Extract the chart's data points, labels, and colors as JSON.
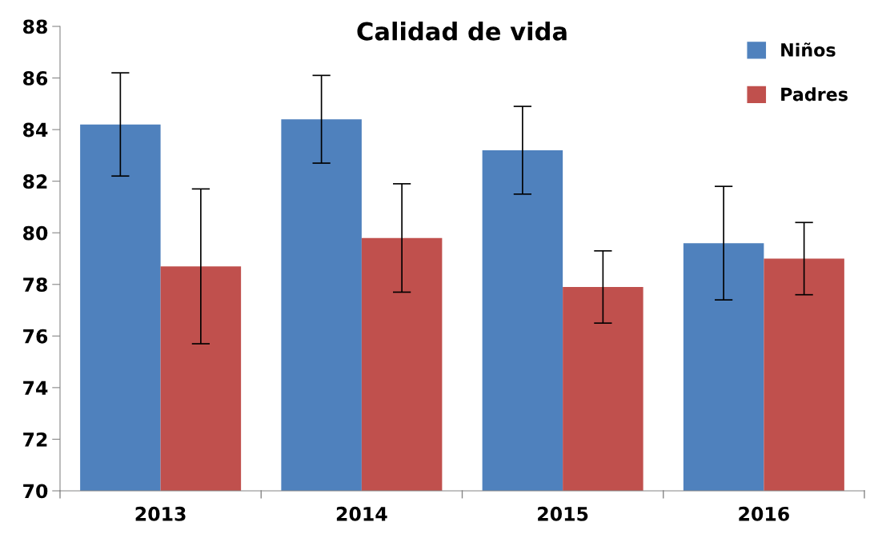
{
  "chart_data": {
    "type": "bar",
    "title": "Calidad de vida",
    "categories": [
      "2013",
      "2014",
      "2015",
      "2016"
    ],
    "series": [
      {
        "name": "Niños",
        "color": "#4f81bd",
        "values": [
          84.2,
          84.4,
          83.2,
          79.6
        ],
        "errors": [
          2.0,
          1.7,
          1.7,
          2.2
        ]
      },
      {
        "name": "Padres",
        "color": "#c0504d",
        "values": [
          78.7,
          79.8,
          77.9,
          79.0
        ],
        "errors": [
          3.0,
          2.1,
          1.4,
          1.4
        ]
      }
    ],
    "ylim": [
      70,
      88
    ],
    "yticks": [
      70,
      72,
      74,
      76,
      78,
      80,
      82,
      84,
      86,
      88
    ],
    "grid": false,
    "legend": "top right"
  }
}
